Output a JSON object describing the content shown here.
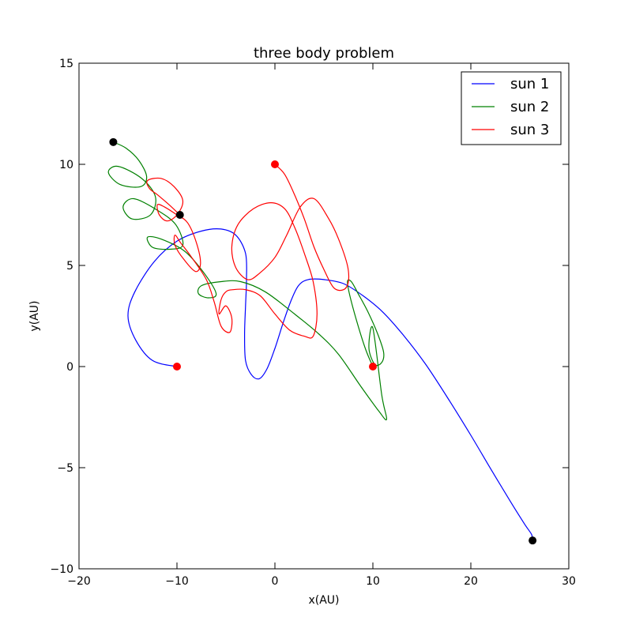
{
  "chart_data": {
    "type": "line",
    "title": "three body problem",
    "xlabel": "x(AU)",
    "ylabel": "y(AU)",
    "xlim": [
      -20,
      30
    ],
    "ylim": [
      -10,
      15
    ],
    "xticks": [
      -20,
      -10,
      0,
      10,
      20,
      30
    ],
    "yticks": [
      -10,
      -5,
      0,
      5,
      10,
      15
    ],
    "xtick_labels": [
      "−20",
      "−10",
      "0",
      "10",
      "20",
      "30"
    ],
    "ytick_labels": [
      "−10",
      "−5",
      "0",
      "5",
      "10",
      "15"
    ],
    "grid": false,
    "legend_position": "top-right",
    "series": [
      {
        "name": "sun 1",
        "color": "#0000ff",
        "points": [
          [
            -10,
            0
          ],
          [
            -12.5,
            0.3
          ],
          [
            -14.2,
            1.3
          ],
          [
            -15.0,
            2.5
          ],
          [
            -14.3,
            3.7
          ],
          [
            -12.3,
            5.2
          ],
          [
            -10.0,
            6.2
          ],
          [
            -7.5,
            6.7
          ],
          [
            -5.5,
            6.8
          ],
          [
            -4.0,
            6.5
          ],
          [
            -3.0,
            5.6
          ],
          [
            -2.9,
            4.3
          ],
          [
            -3.0,
            3.0
          ],
          [
            -3.1,
            1.6
          ],
          [
            -3.0,
            0.3
          ],
          [
            -2.4,
            -0.4
          ],
          [
            -1.6,
            -0.6
          ],
          [
            -0.8,
            -0.1
          ],
          [
            0.0,
            0.9
          ],
          [
            0.8,
            2.1
          ],
          [
            1.6,
            3.2
          ],
          [
            2.4,
            4.0
          ],
          [
            3.4,
            4.3
          ],
          [
            5.0,
            4.3
          ],
          [
            7.0,
            4.1
          ],
          [
            9.0,
            3.5
          ],
          [
            11.0,
            2.7
          ],
          [
            13.2,
            1.5
          ],
          [
            15.4,
            0.1
          ],
          [
            17.7,
            -1.6
          ],
          [
            20.0,
            -3.4
          ],
          [
            22.2,
            -5.2
          ],
          [
            24.2,
            -6.8
          ],
          [
            25.5,
            -7.8
          ],
          [
            26.2,
            -8.3
          ],
          [
            26.3,
            -8.6
          ]
        ],
        "start": [
          -10,
          0
        ],
        "end": [
          26.3,
          -8.6
        ]
      },
      {
        "name": "sun 2",
        "color": "#008000",
        "points": [
          [
            10,
            0
          ],
          [
            9.3,
            0.8
          ],
          [
            8.5,
            2.0
          ],
          [
            7.7,
            3.4
          ],
          [
            7.4,
            4.2
          ],
          [
            7.8,
            4.2
          ],
          [
            8.5,
            3.6
          ],
          [
            9.5,
            2.7
          ],
          [
            10.5,
            1.6
          ],
          [
            11.1,
            0.7
          ],
          [
            10.9,
            0.2
          ],
          [
            10.2,
            0.1
          ],
          [
            9.6,
            0.9
          ],
          [
            10.0,
            1.9
          ],
          [
            10.9,
            -1.4
          ],
          [
            11.4,
            -2.6
          ],
          [
            10.6,
            -2.2
          ],
          [
            8.8,
            -1.0
          ],
          [
            6.5,
            0.6
          ],
          [
            4.5,
            1.6
          ],
          [
            2.0,
            2.6
          ],
          [
            -1.0,
            3.7
          ],
          [
            -3.5,
            4.2
          ],
          [
            -5.5,
            4.2
          ],
          [
            -7.5,
            4.0
          ],
          [
            -7.8,
            3.6
          ],
          [
            -6.8,
            3.4
          ],
          [
            -6.0,
            3.6
          ],
          [
            -7.2,
            4.6
          ],
          [
            -9.2,
            5.7
          ],
          [
            -11.6,
            6.3
          ],
          [
            -13.0,
            6.4
          ],
          [
            -12.5,
            5.9
          ],
          [
            -10.8,
            5.8
          ],
          [
            -9.4,
            6.0
          ],
          [
            -10.1,
            7.0
          ],
          [
            -11.9,
            7.7
          ],
          [
            -14.4,
            8.3
          ],
          [
            -15.5,
            7.9
          ],
          [
            -14.6,
            7.3
          ],
          [
            -12.7,
            7.5
          ],
          [
            -12.2,
            8.4
          ],
          [
            -13.6,
            9.3
          ],
          [
            -16.0,
            9.9
          ],
          [
            -17.0,
            9.6
          ],
          [
            -15.8,
            9.0
          ],
          [
            -13.7,
            8.9
          ],
          [
            -13.1,
            9.4
          ],
          [
            -13.9,
            10.2
          ],
          [
            -15.2,
            10.8
          ],
          [
            -16.5,
            11.1
          ]
        ],
        "start": [
          10,
          0
        ],
        "end": [
          -16.5,
          11.1
        ]
      },
      {
        "name": "sun 3",
        "color": "#ff0000",
        "points": [
          [
            0,
            10
          ],
          [
            1.0,
            9.5
          ],
          [
            2.0,
            8.5
          ],
          [
            3.0,
            7.3
          ],
          [
            4.0,
            5.9
          ],
          [
            5.0,
            4.8
          ],
          [
            6.0,
            3.9
          ],
          [
            7.0,
            3.8
          ],
          [
            7.5,
            4.2
          ],
          [
            7.4,
            5.0
          ],
          [
            6.5,
            6.3
          ],
          [
            5.5,
            7.3
          ],
          [
            4.0,
            8.3
          ],
          [
            2.6,
            7.9
          ],
          [
            1.2,
            6.5
          ],
          [
            0.0,
            5.4
          ],
          [
            -1.6,
            4.6
          ],
          [
            -2.8,
            4.3
          ],
          [
            -4.0,
            4.9
          ],
          [
            -4.4,
            5.9
          ],
          [
            -3.8,
            7.0
          ],
          [
            -2.2,
            7.8
          ],
          [
            -0.4,
            8.1
          ],
          [
            1.0,
            7.8
          ],
          [
            2.0,
            6.9
          ],
          [
            3.0,
            5.6
          ],
          [
            3.9,
            4.2
          ],
          [
            4.3,
            2.6
          ],
          [
            3.9,
            1.5
          ],
          [
            3.0,
            1.5
          ],
          [
            1.5,
            1.8
          ],
          [
            0.0,
            2.6
          ],
          [
            -1.5,
            3.5
          ],
          [
            -3.0,
            3.8
          ],
          [
            -4.3,
            3.8
          ],
          [
            -5.0,
            3.7
          ],
          [
            -5.5,
            3.3
          ],
          [
            -5.7,
            2.6
          ],
          [
            -5.0,
            3.0
          ],
          [
            -4.4,
            2.4
          ],
          [
            -4.6,
            1.7
          ],
          [
            -5.5,
            2.0
          ],
          [
            -6.2,
            3.2
          ],
          [
            -7.0,
            4.3
          ],
          [
            -8.5,
            5.4
          ],
          [
            -9.6,
            6.1
          ],
          [
            -10.2,
            6.5
          ],
          [
            -10.2,
            6.0
          ],
          [
            -9.3,
            5.3
          ],
          [
            -8.1,
            4.7
          ],
          [
            -7.6,
            5.1
          ],
          [
            -8.0,
            6.1
          ],
          [
            -8.9,
            7.1
          ],
          [
            -10.0,
            7.5
          ],
          [
            -11.3,
            7.9
          ],
          [
            -12.0,
            8.0
          ],
          [
            -11.8,
            7.5
          ],
          [
            -11.0,
            7.2
          ],
          [
            -10.0,
            7.5
          ],
          [
            -9.4,
            8.2
          ],
          [
            -10.3,
            8.9
          ],
          [
            -11.6,
            9.3
          ],
          [
            -13.0,
            9.2
          ],
          [
            -12.8,
            8.8
          ],
          [
            -12.0,
            8.5
          ],
          [
            -10.8,
            8.0
          ],
          [
            -9.7,
            7.5
          ]
        ],
        "start": [
          0,
          10
        ],
        "end": [
          -9.7,
          7.5
        ]
      }
    ]
  }
}
